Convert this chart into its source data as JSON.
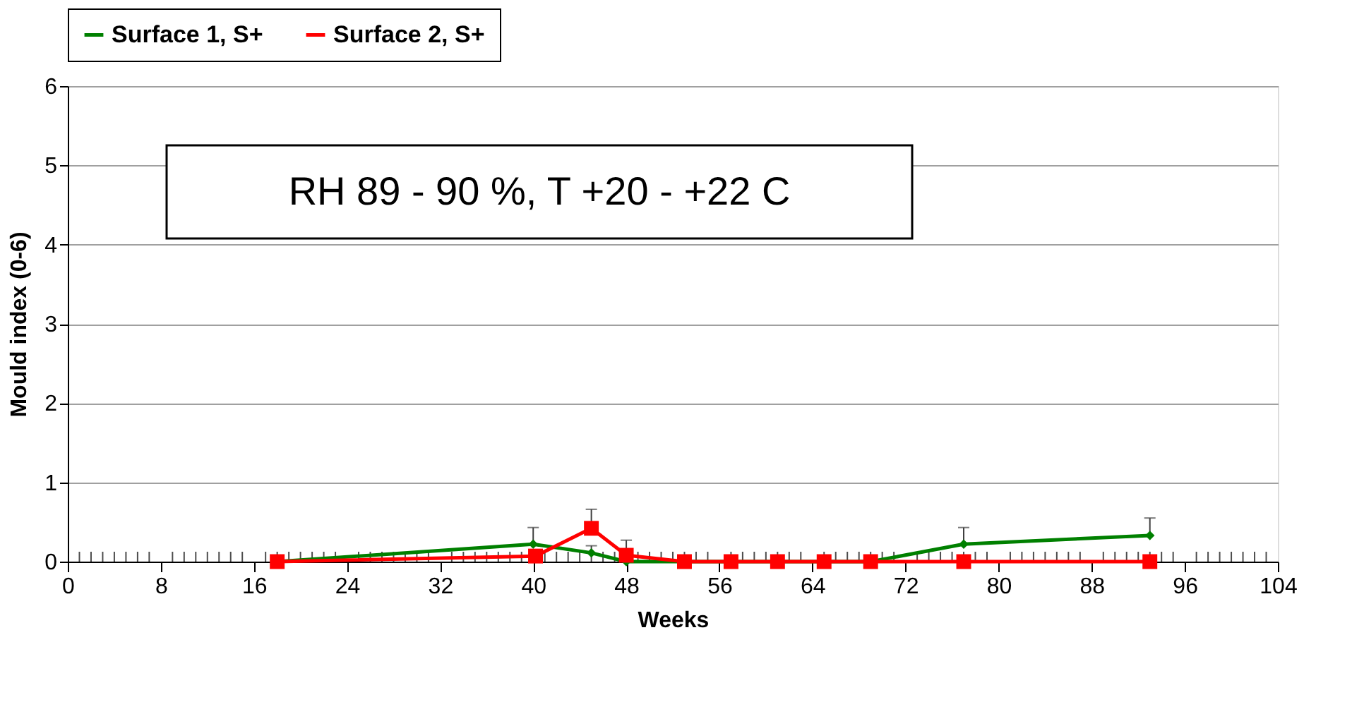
{
  "chart_data": {
    "type": "line",
    "xlabel": "Weeks",
    "ylabel": "Mould index  (0-6)",
    "annotations": [
      "RH 89 -  90 %, T +20 - +22 C"
    ],
    "xlim": [
      0,
      104
    ],
    "xticks": [
      0,
      8,
      16,
      24,
      32,
      40,
      48,
      56,
      64,
      72,
      80,
      88,
      96,
      104
    ],
    "ylim": [
      0,
      6
    ],
    "yticks": [
      0,
      1,
      2,
      3,
      4,
      5,
      6
    ],
    "grid": "y",
    "legend": "top",
    "line_style": "solid",
    "series": [
      {
        "name": "Surface 1, S+",
        "color": "#008000",
        "marker": "diamond",
        "x": [
          18,
          40,
          45,
          48,
          53,
          57,
          61,
          65,
          69,
          77,
          93
        ],
        "values": [
          0,
          0.22,
          0.11,
          0,
          0,
          0,
          0,
          0,
          0,
          0.22,
          0.33
        ],
        "errors": [
          null,
          [
            0.22,
            0.43
          ],
          [
            0.11,
            0.2
          ],
          null,
          null,
          null,
          null,
          null,
          null,
          [
            0.22,
            0.43
          ],
          [
            0.33,
            0.55
          ]
        ]
      },
      {
        "name": "Surface 2, S+",
        "color": "#ff0000",
        "marker": "square",
        "x": [
          18,
          40.2,
          45,
          48,
          53,
          57,
          61,
          65,
          69,
          77,
          93
        ],
        "values": [
          0,
          0.07,
          0.42,
          0.08,
          0,
          0,
          0,
          0,
          0,
          0,
          0
        ],
        "errors": [
          null,
          null,
          [
            0.42,
            0.66
          ],
          [
            0.08,
            0.27
          ],
          null,
          null,
          null,
          null,
          null,
          null,
          null
        ]
      }
    ]
  }
}
